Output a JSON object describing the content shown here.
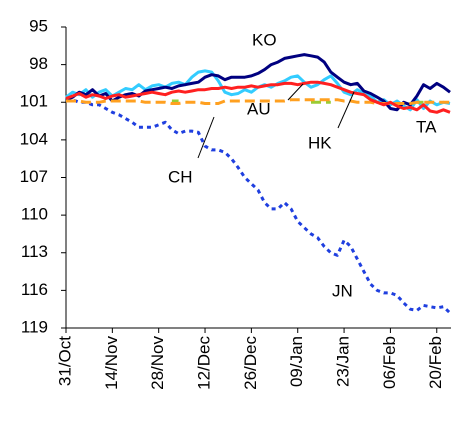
{
  "chart_data": {
    "type": "line",
    "categories": [
      "31/Oct",
      null,
      null,
      null,
      null,
      null,
      null,
      "14/Nov",
      null,
      null,
      null,
      null,
      null,
      null,
      "28/Nov",
      null,
      null,
      null,
      null,
      null,
      null,
      "12/Dec",
      null,
      null,
      null,
      null,
      null,
      null,
      "26/Dec",
      null,
      null,
      null,
      null,
      null,
      null,
      "09/Jan",
      null,
      null,
      null,
      null,
      null,
      null,
      "23/Jan",
      null,
      null,
      null,
      null,
      null,
      null,
      "06/Feb",
      null,
      null,
      null,
      null,
      null,
      null,
      "20/Feb",
      null,
      null
    ],
    "ylim": [
      95,
      119
    ],
    "yticks": [
      95,
      98,
      101,
      104,
      107,
      110,
      113,
      116,
      119
    ],
    "y_inverted": true,
    "grid": false,
    "series": [
      {
        "name": "TA",
        "color": "#ff2020",
        "style": "solid",
        "values": [
          100.7,
          100.5,
          100.3,
          100.6,
          100.4,
          100.5,
          100.7,
          100.5,
          100.4,
          100.6,
          100.5,
          100.4,
          100.3,
          100.2,
          100.3,
          100.4,
          100.2,
          100.1,
          100.2,
          100.1,
          100.0,
          100.0,
          99.9,
          99.9,
          99.8,
          99.9,
          99.8,
          99.8,
          99.7,
          99.8,
          99.7,
          99.6,
          99.6,
          99.5,
          99.5,
          99.6,
          99.5,
          99.4,
          99.4,
          99.5,
          99.6,
          99.8,
          100.0,
          100.2,
          100.3,
          100.4,
          100.8,
          101.0,
          101.2,
          101.0,
          101.3,
          101.5,
          101.4,
          101.6,
          101.2,
          101.7,
          101.8,
          101.6,
          101.8
        ]
      },
      {
        "name": "AU",
        "color": "#ffa020",
        "style": "dashed",
        "values": [
          100.9,
          100.9,
          100.9,
          101.0,
          101.0,
          101.0,
          100.9,
          100.9,
          100.9,
          100.9,
          100.9,
          100.9,
          101.0,
          101.0,
          101.0,
          101.0,
          101.1,
          101.1,
          101.0,
          101.0,
          101.0,
          101.1,
          101.1,
          101.1,
          100.9,
          100.9,
          100.9,
          100.9,
          100.9,
          100.9,
          100.9,
          100.9,
          100.9,
          100.9,
          100.8,
          100.8,
          100.8,
          100.8,
          100.8,
          100.8,
          100.8,
          100.8,
          100.9,
          100.9,
          101.0,
          101.0,
          101.0,
          101.1,
          101.1,
          101.1,
          101.1,
          101.1,
          101.1,
          101.0,
          101.0,
          101.0,
          101.0,
          101.0,
          101.0
        ]
      },
      {
        "name": "CH",
        "color": "#99cc33",
        "style": "dashed",
        "values": [
          100.9,
          100.9,
          null,
          null,
          null,
          null,
          null,
          null,
          null,
          null,
          null,
          null,
          null,
          null,
          null,
          null,
          100.9,
          100.9,
          null,
          null,
          null,
          null,
          null,
          null,
          null,
          null,
          null,
          null,
          null,
          null,
          null,
          null,
          null,
          null,
          null,
          null,
          null,
          101.0,
          101.0,
          101.0,
          101.0,
          null,
          null,
          null,
          null,
          null,
          null,
          null,
          null,
          null,
          null,
          null,
          null,
          101.0,
          101.0,
          null,
          null,
          null,
          null
        ]
      },
      {
        "name": "KO",
        "color": "#000080",
        "style": "solid",
        "values": [
          100.8,
          100.6,
          100.2,
          100.4,
          100.0,
          100.5,
          100.3,
          100.9,
          100.6,
          100.4,
          100.3,
          100.5,
          100.1,
          100.0,
          99.9,
          99.8,
          99.9,
          99.7,
          99.6,
          99.5,
          99.4,
          99.0,
          98.8,
          98.9,
          99.2,
          99.0,
          99.0,
          99.0,
          98.9,
          98.7,
          98.4,
          98.0,
          97.8,
          97.5,
          97.4,
          97.3,
          97.2,
          97.3,
          97.4,
          97.8,
          98.6,
          99.0,
          99.4,
          99.6,
          99.5,
          100.1,
          100.3,
          100.6,
          100.9,
          101.5,
          101.6,
          101.0,
          101.2,
          100.5,
          99.6,
          99.9,
          99.5,
          99.8,
          100.2
        ]
      },
      {
        "name": "HK",
        "color": "#33ccff",
        "style": "solid",
        "values": [
          100.6,
          100.2,
          100.4,
          100.0,
          100.6,
          100.2,
          100.0,
          100.5,
          100.2,
          99.9,
          100.0,
          99.6,
          100.0,
          99.7,
          99.6,
          99.8,
          99.5,
          99.4,
          99.6,
          99.0,
          98.6,
          98.5,
          98.6,
          99.3,
          100.2,
          100.4,
          100.3,
          100.0,
          100.2,
          99.8,
          99.6,
          99.8,
          99.5,
          99.3,
          99.0,
          98.9,
          99.4,
          99.8,
          99.6,
          99.2,
          98.9,
          99.5,
          100.2,
          100.4,
          100.0,
          100.3,
          100.5,
          101.0,
          100.8,
          101.2,
          100.9,
          101.3,
          101.6,
          100.8,
          101.5,
          100.9,
          101.2,
          101.0,
          101.1
        ]
      },
      {
        "name": "JN",
        "color": "#1f3fdf",
        "style": "dotted",
        "values": [
          100.8,
          100.8,
          101.0,
          101.0,
          101.2,
          101.2,
          101.5,
          101.8,
          102.0,
          102.3,
          102.6,
          103.0,
          103.0,
          103.0,
          102.8,
          102.6,
          103.2,
          103.5,
          103.3,
          103.3,
          103.4,
          104.5,
          104.8,
          104.8,
          105.0,
          105.5,
          106.2,
          107.0,
          107.5,
          108.0,
          109.0,
          109.5,
          109.5,
          109.0,
          109.5,
          110.5,
          111.0,
          111.5,
          111.8,
          112.5,
          113.0,
          113.2,
          112.0,
          112.5,
          113.5,
          114.5,
          115.5,
          116.0,
          116.2,
          116.2,
          116.4,
          117.0,
          117.5,
          117.6,
          117.2,
          117.3,
          117.4,
          117.3,
          117.8
        ]
      }
    ],
    "annotations": [
      "KO",
      "AU",
      "HK",
      "TA",
      "CH",
      "JN"
    ]
  }
}
